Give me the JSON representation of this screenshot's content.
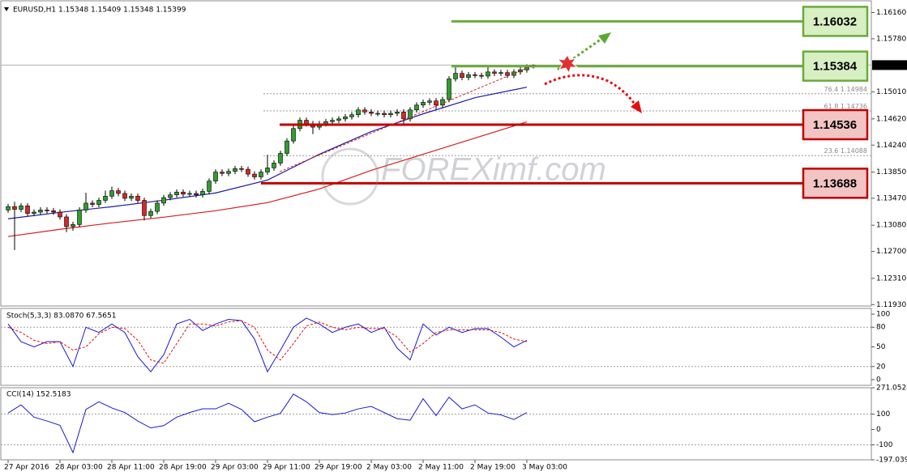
{
  "chart_data": [
    {
      "type": "candlestick",
      "title": "EURUSD,H1  1.15348 1.15409 1.15348 1.15399",
      "watermark": "FOREXimf.com",
      "x_labels": [
        "27 Apr 2016",
        "28 Apr 03:00",
        "28 Apr 11:00",
        "28 Apr 19:00",
        "29 Apr 03:00",
        "29 Apr 11:00",
        "29 Apr 19:00",
        "2 May 03:00",
        "2 May 11:00",
        "2 May 19:00",
        "3 May 03:00"
      ],
      "ylim": [
        1.1191,
        1.1633
      ],
      "yticks": [
        {
          "value": 1.1616,
          "label": "1.16160"
        },
        {
          "value": 1.1578,
          "label": "1.15780"
        },
        {
          "value": 1.1501,
          "label": "1.15010"
        },
        {
          "value": 1.1462,
          "label": "1.14620"
        },
        {
          "value": 1.1424,
          "label": "1.14240"
        },
        {
          "value": 1.1385,
          "label": "1.13850"
        },
        {
          "value": 1.1347,
          "label": "1.13470"
        },
        {
          "value": 1.1308,
          "label": "1.13080"
        },
        {
          "value": 1.127,
          "label": "1.12700"
        },
        {
          "value": 1.1231,
          "label": "1.12310"
        },
        {
          "value": 1.1193,
          "label": "1.11930"
        }
      ],
      "up_color": "#2e9e2e",
      "down_color": "#d62828",
      "open": [
        1.133,
        1.1335,
        1.1331,
        1.1336,
        1.1325,
        1.1327,
        1.133,
        1.1329,
        1.1327,
        1.132,
        1.1306,
        1.1309,
        1.133,
        1.134,
        1.1338,
        1.1344,
        1.135,
        1.1358,
        1.1354,
        1.1347,
        1.135,
        1.1344,
        1.1322,
        1.1328,
        1.134,
        1.1348,
        1.1352,
        1.1356,
        1.1353,
        1.1354,
        1.1352,
        1.1357,
        1.1372,
        1.1385,
        1.1383,
        1.1386,
        1.139,
        1.1389,
        1.1382,
        1.1378,
        1.1385,
        1.1391,
        1.1398,
        1.1412,
        1.143,
        1.1448,
        1.146,
        1.1455,
        1.145,
        1.1455,
        1.1458,
        1.146,
        1.1462,
        1.1465,
        1.1468,
        1.1475,
        1.1472,
        1.147,
        1.147,
        1.1468,
        1.147,
        1.1472,
        1.1462,
        1.1475,
        1.1482,
        1.1486,
        1.1488,
        1.1482,
        1.149,
        1.152,
        1.1528,
        1.1522,
        1.1526,
        1.1525,
        1.1524,
        1.153,
        1.1528,
        1.1529,
        1.1525,
        1.153,
        1.1533,
        1.1537
      ],
      "high": [
        1.1339,
        1.1342,
        1.134,
        1.134,
        1.1331,
        1.1334,
        1.1334,
        1.1333,
        1.1331,
        1.1324,
        1.1313,
        1.1334,
        1.1355,
        1.1344,
        1.1348,
        1.1358,
        1.1364,
        1.1362,
        1.1358,
        1.1354,
        1.1354,
        1.1348,
        1.1332,
        1.1344,
        1.1352,
        1.1356,
        1.136,
        1.136,
        1.1358,
        1.1358,
        1.1361,
        1.1376,
        1.1389,
        1.1389,
        1.139,
        1.1394,
        1.1394,
        1.1393,
        1.1386,
        1.1389,
        1.141,
        1.1402,
        1.1416,
        1.1434,
        1.1452,
        1.1464,
        1.1464,
        1.1459,
        1.1459,
        1.1462,
        1.1464,
        1.1466,
        1.1469,
        1.1472,
        1.1479,
        1.1479,
        1.1476,
        1.1474,
        1.1474,
        1.1474,
        1.1476,
        1.1476,
        1.1479,
        1.1486,
        1.149,
        1.1492,
        1.1492,
        1.1494,
        1.1524,
        1.1538,
        1.1532,
        1.153,
        1.153,
        1.1529,
        1.1538,
        1.1534,
        1.1533,
        1.1533,
        1.1534,
        1.1537,
        1.1541,
        1.1541
      ],
      "low": [
        1.1326,
        1.1272,
        1.1327,
        1.1321,
        1.1321,
        1.1323,
        1.1325,
        1.1323,
        1.1316,
        1.1298,
        1.13,
        1.1305,
        1.1326,
        1.1334,
        1.1334,
        1.134,
        1.1346,
        1.135,
        1.1343,
        1.1343,
        1.134,
        1.1315,
        1.1318,
        1.1324,
        1.1336,
        1.1344,
        1.1348,
        1.1349,
        1.1349,
        1.1348,
        1.1348,
        1.1353,
        1.1368,
        1.1379,
        1.1379,
        1.1382,
        1.1385,
        1.1378,
        1.1374,
        1.1374,
        1.1381,
        1.1387,
        1.1394,
        1.1408,
        1.1426,
        1.1444,
        1.1451,
        1.144,
        1.1446,
        1.1451,
        1.1454,
        1.1456,
        1.1458,
        1.1461,
        1.1464,
        1.1468,
        1.1466,
        1.1466,
        1.1464,
        1.1464,
        1.1466,
        1.1455,
        1.1458,
        1.1471,
        1.1478,
        1.1482,
        1.1476,
        1.1478,
        1.1486,
        1.1516,
        1.1518,
        1.1518,
        1.1521,
        1.152,
        1.152,
        1.1524,
        1.1524,
        1.1521,
        1.1521,
        1.1526,
        1.1529,
        1.1535
      ],
      "close": [
        1.1335,
        1.1331,
        1.1336,
        1.1325,
        1.1327,
        1.133,
        1.1329,
        1.1327,
        1.132,
        1.1306,
        1.1309,
        1.133,
        1.134,
        1.1338,
        1.1344,
        1.135,
        1.1358,
        1.1354,
        1.1347,
        1.135,
        1.1344,
        1.1322,
        1.1328,
        1.134,
        1.1348,
        1.1352,
        1.1356,
        1.1353,
        1.1354,
        1.1352,
        1.1357,
        1.1372,
        1.1385,
        1.1383,
        1.1386,
        1.139,
        1.1389,
        1.1382,
        1.1378,
        1.1385,
        1.1391,
        1.1398,
        1.1412,
        1.143,
        1.1448,
        1.146,
        1.1455,
        1.145,
        1.1455,
        1.1458,
        1.146,
        1.1462,
        1.1465,
        1.1468,
        1.1475,
        1.1472,
        1.147,
        1.147,
        1.1468,
        1.147,
        1.1472,
        1.1462,
        1.1475,
        1.1482,
        1.1486,
        1.1488,
        1.1482,
        1.149,
        1.152,
        1.1528,
        1.1522,
        1.1526,
        1.1525,
        1.1524,
        1.153,
        1.1528,
        1.1529,
        1.1525,
        1.153,
        1.1533,
        1.1537,
        1.154
      ],
      "moving_averages": [
        {
          "color": "#1a1aa6",
          "values": [
            1.13173,
            1.13266,
            1.13348,
            1.13442,
            1.13547,
            1.13734,
            1.14108,
            1.14436,
            1.14693,
            1.14927,
            1.15079
          ]
        },
        {
          "color": "#d81e1e",
          "values": [
            1.12916,
            1.13021,
            1.13114,
            1.13196,
            1.1329,
            1.13407,
            1.13605,
            1.13874,
            1.14108,
            1.14342,
            1.14576
          ]
        }
      ],
      "levels": [
        {
          "value": 1.16032,
          "color": "#6aab3c",
          "box_color": "#d8efc4"
        },
        {
          "value": 1.15384,
          "color": "#6aab3c",
          "box_color": "#d8efc4"
        },
        {
          "value": 1.14536,
          "color": "#c00000",
          "box_color": "#f2c4c4"
        },
        {
          "value": 1.13688,
          "color": "#c00000",
          "box_color": "#f2c4c4"
        }
      ],
      "fib_levels": [
        {
          "ratio": 76.4,
          "price": 1.14984
        },
        {
          "ratio": 61.8,
          "price": 1.14736
        },
        {
          "ratio": 23.6,
          "price": 1.14088
        }
      ],
      "current_price": 1.15399
    },
    {
      "type": "line",
      "title": "Stoch(5,3,3) 83.0870 67.5651",
      "ylim": [
        -8.75,
        108.75
      ],
      "yticks": [
        100,
        80,
        50,
        20,
        0
      ],
      "levels": [
        80,
        20
      ],
      "series": [
        {
          "color": "#1a1ad0",
          "dashed": false,
          "values": [
            85,
            58,
            50,
            58,
            58,
            20,
            80,
            72,
            85,
            72,
            35,
            12,
            38,
            85,
            92,
            75,
            85,
            92,
            90,
            62,
            12,
            45,
            80,
            94,
            85,
            72,
            80,
            85,
            72,
            80,
            48,
            30,
            85,
            68,
            80,
            72,
            78,
            78,
            65,
            50,
            60
          ]
        },
        {
          "color": "#e01010",
          "dashed": true,
          "values": [
            80,
            72,
            60,
            55,
            58,
            45,
            50,
            70,
            80,
            78,
            60,
            30,
            25,
            55,
            85,
            85,
            82,
            88,
            90,
            80,
            45,
            30,
            55,
            82,
            88,
            80,
            76,
            80,
            78,
            78,
            65,
            42,
            55,
            72,
            76,
            76,
            76,
            76,
            72,
            62,
            58
          ]
        }
      ]
    },
    {
      "type": "line",
      "title": "CCI(14) 152.5183",
      "ylim": [
        -197.0392,
        271.0524
      ],
      "yticks": [
        271.0524,
        100,
        0,
        -100,
        -197.0392
      ],
      "levels": [
        100,
        -100
      ],
      "series": [
        {
          "color": "#1a1ad0",
          "dashed": false,
          "values": [
            107,
            160,
            80,
            55,
            27,
            -150,
            130,
            180,
            140,
            110,
            55,
            10,
            25,
            80,
            110,
            134,
            134,
            170,
            130,
            50,
            80,
            105,
            230,
            180,
            110,
            97,
            107,
            134,
            150,
            110,
            70,
            60,
            200,
            90,
            210,
            134,
            160,
            107,
            95,
            65,
            110
          ]
        }
      ]
    }
  ]
}
